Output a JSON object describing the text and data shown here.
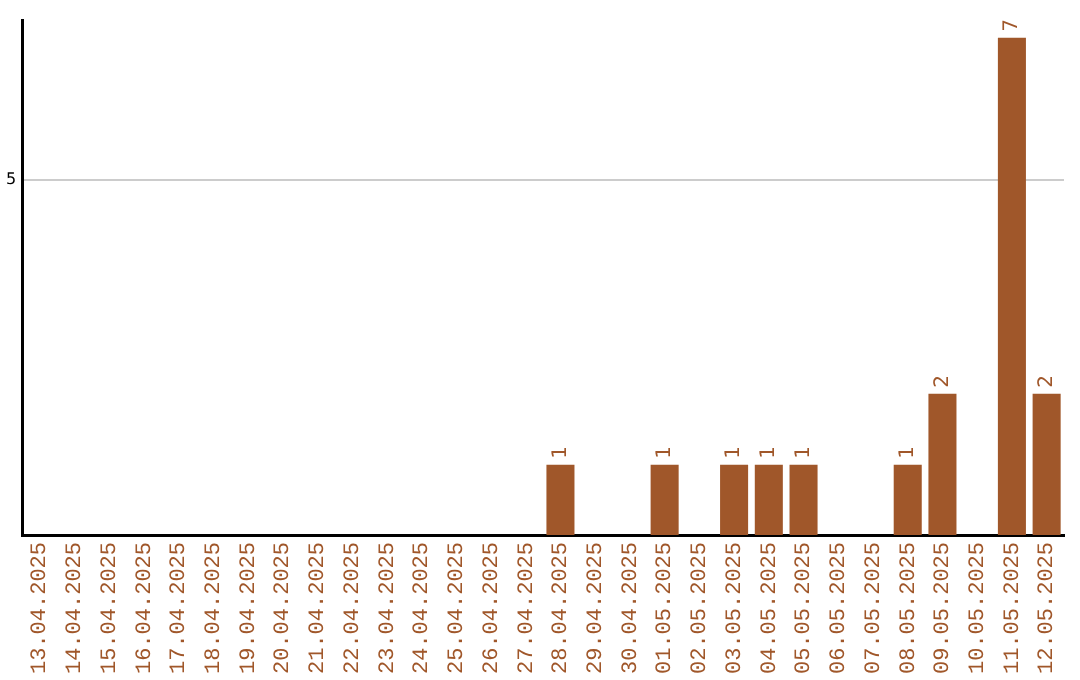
{
  "chart_data": {
    "type": "bar",
    "data_labels": true,
    "categories": [
      "13.04.2025",
      "14.04.2025",
      "15.04.2025",
      "16.04.2025",
      "17.04.2025",
      "18.04.2025",
      "19.04.2025",
      "20.04.2025",
      "21.04.2025",
      "22.04.2025",
      "23.04.2025",
      "24.04.2025",
      "25.04.2025",
      "26.04.2025",
      "27.04.2025",
      "28.04.2025",
      "29.04.2025",
      "30.04.2025",
      "01.05.2025",
      "02.05.2025",
      "03.05.2025",
      "04.05.2025",
      "05.05.2025",
      "06.05.2025",
      "07.05.2025",
      "08.05.2025",
      "09.05.2025",
      "10.05.2025",
      "11.05.2025",
      "12.05.2025"
    ],
    "values": [
      null,
      null,
      null,
      null,
      null,
      null,
      null,
      null,
      null,
      null,
      null,
      null,
      null,
      null,
      null,
      1,
      null,
      null,
      1,
      null,
      1,
      1,
      1,
      null,
      null,
      1,
      2,
      null,
      7,
      2
    ],
    "color": "#a0572a",
    "ylim": [
      0,
      7.25
    ],
    "yticks": [
      {
        "value": 0,
        "label": null
      },
      5
    ],
    "grid": "y",
    "legend": false
  }
}
